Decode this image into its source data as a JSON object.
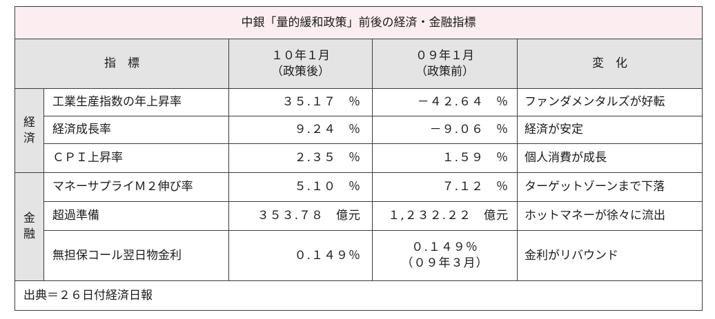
{
  "title": "中銀「量的緩和政策」前後の経済・金融指標",
  "header": {
    "indicator": "指　標",
    "col1_line1": "１０年１月",
    "col1_line2": "（政策後）",
    "col2_line1": "０９年１月",
    "col2_line2": "（政策前）",
    "change": "変　化"
  },
  "groups": {
    "economy": {
      "char1": "経",
      "char2": "済"
    },
    "finance": {
      "char1": "金",
      "char2": "融"
    }
  },
  "rows": [
    {
      "name": "工業生産指数の年上昇率",
      "after": "３５.１７　％",
      "before": "－４２.６４　％",
      "change": "ファンダメンタルズが好転"
    },
    {
      "name": "経済成長率",
      "after": "９.２４　％",
      "before": "－９.０６　％",
      "change": "経済が安定"
    },
    {
      "name": "ＣＰＩ上昇率",
      "after": "２.３５　％",
      "before": "１.５９　％",
      "change": "個人消費が成長"
    },
    {
      "name": "マネーサプライＭ２伸び率",
      "after": "５.１０　％",
      "before": "７.１２　％",
      "change": "ターゲットゾーンまで下落"
    },
    {
      "name": "超過準備",
      "after": "３５３.７８　億元",
      "before": "１,２３２.２２　億元",
      "change": "ホットマネーが徐々に流出"
    },
    {
      "name": "無担保コール翌日物金利",
      "after": "０.１４９％",
      "before_line1": "０.１４９％",
      "before_line2": "（０９年３月）",
      "change": "金利がリバウンド"
    }
  ],
  "source": "出典＝２６日付経済日報"
}
